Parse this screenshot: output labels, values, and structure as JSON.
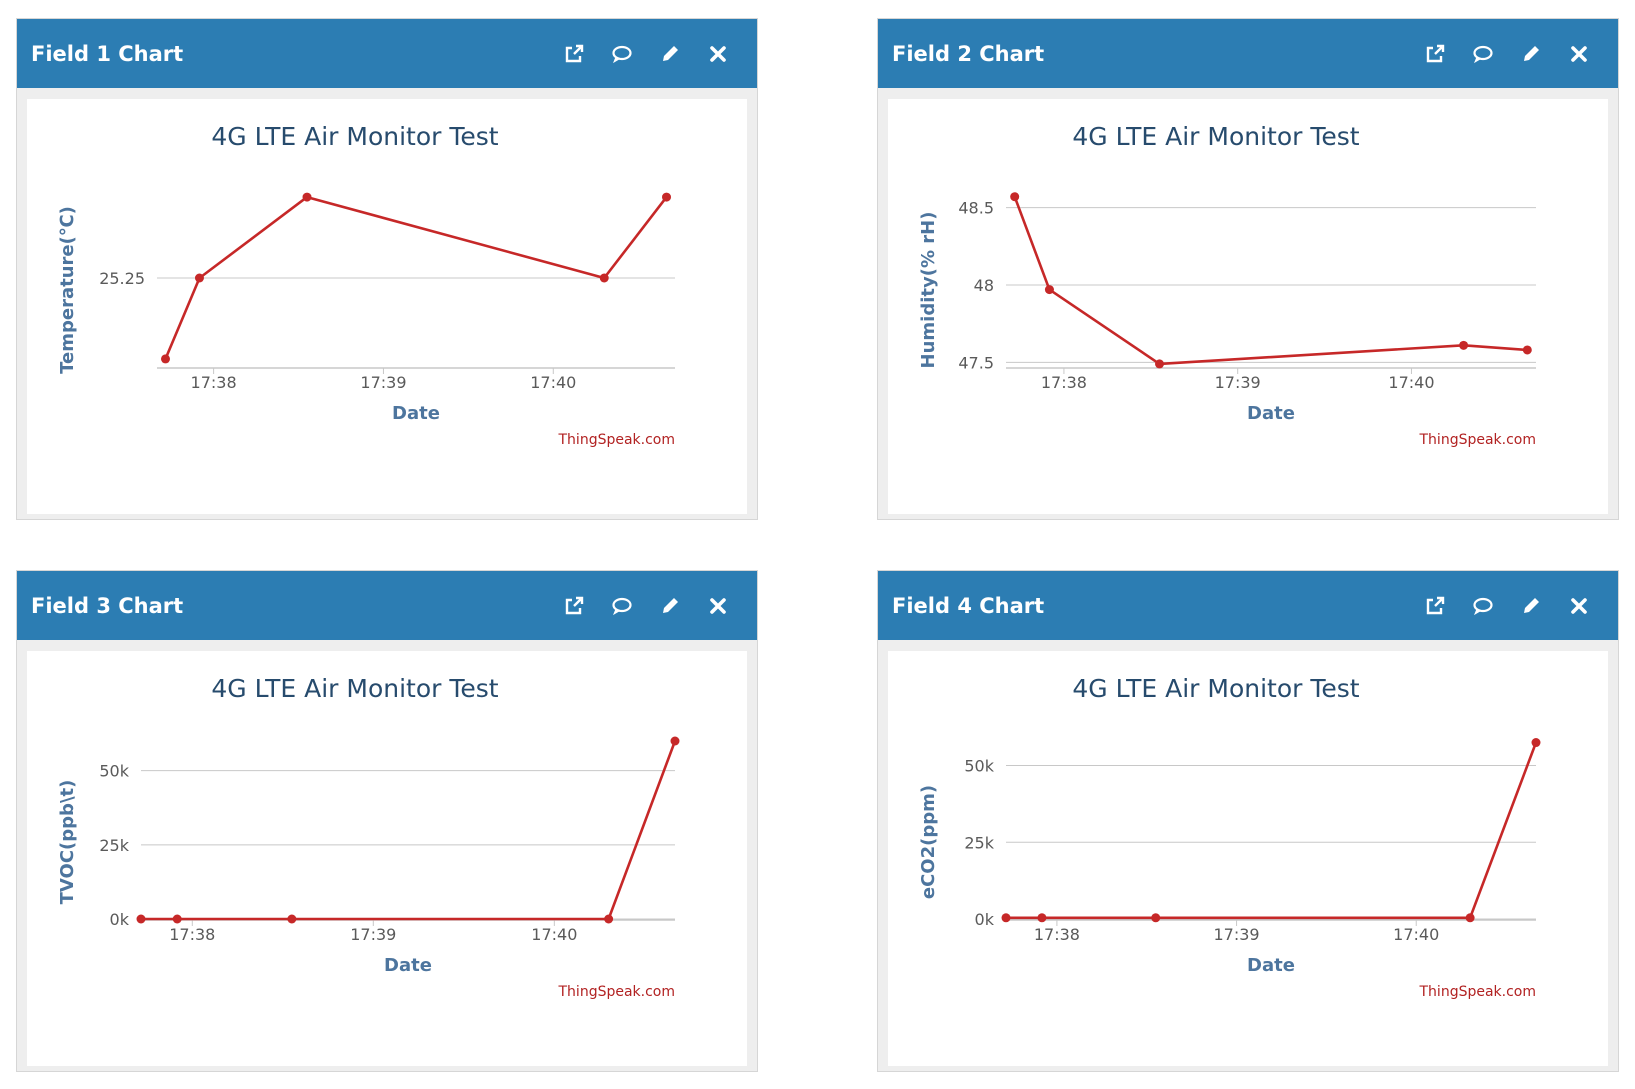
{
  "panels": [
    {
      "header_title": "Field 1 Chart",
      "chart_title": "4G LTE Air Monitor Test",
      "ylabel": "Temperature(℃)",
      "xlabel": "Date",
      "credit": "ThingSpeak.com",
      "y_ticks": [
        "25.25"
      ],
      "x_ticks": [
        "17:38",
        "17:39",
        "17:40"
      ]
    },
    {
      "header_title": "Field 2 Chart",
      "chart_title": "4G LTE Air Monitor Test",
      "ylabel": "Humidity(% rH)",
      "xlabel": "Date",
      "credit": "ThingSpeak.com",
      "y_ticks": [
        "48.5",
        "48",
        "47.5"
      ],
      "x_ticks": [
        "17:38",
        "17:39",
        "17:40"
      ]
    },
    {
      "header_title": "Field 3 Chart",
      "chart_title": "4G LTE Air Monitor Test",
      "ylabel": "TVOC(ppb\\t)",
      "xlabel": "Date",
      "credit": "ThingSpeak.com",
      "y_ticks": [
        "50k",
        "25k",
        "0k"
      ],
      "x_ticks": [
        "17:38",
        "17:39",
        "17:40"
      ]
    },
    {
      "header_title": "Field 4 Chart",
      "chart_title": "4G LTE Air Monitor Test",
      "ylabel": "eCO2(ppm)",
      "xlabel": "Date",
      "credit": "ThingSpeak.com",
      "y_ticks": [
        "50k",
        "25k",
        "0k"
      ],
      "x_ticks": [
        "17:38",
        "17:39",
        "17:40"
      ]
    }
  ],
  "colors": {
    "header": "#2c7db3",
    "line": "#c62828",
    "title": "#274b6d",
    "axis_label": "#4d759e",
    "credit": "#b22222",
    "grid": "#c8c8c8"
  },
  "icons": [
    "external-link-icon",
    "comment-icon",
    "pencil-icon",
    "close-icon"
  ],
  "chart_data": [
    {
      "type": "line",
      "title": "4G LTE Air Monitor Test",
      "xlabel": "Date",
      "ylabel": "Temperature(℃)",
      "x": [
        "17:37:43",
        "17:37:55",
        "17:38:33",
        "17:40:18",
        "17:40:40"
      ],
      "values": [
        25.2,
        25.25,
        25.3,
        25.25,
        25.3
      ],
      "ylim": [
        25.195,
        25.305
      ],
      "xlim": [
        "17:37:40",
        "17:40:43"
      ],
      "y_ticks": [
        25.25
      ],
      "x_ticks": [
        "17:38",
        "17:39",
        "17:40"
      ],
      "grid": true,
      "legend": "none"
    },
    {
      "type": "line",
      "title": "4G LTE Air Monitor Test",
      "xlabel": "Date",
      "ylabel": "Humidity(% rH)",
      "x": [
        "17:37:43",
        "17:37:55",
        "17:38:33",
        "17:40:18",
        "17:40:40"
      ],
      "values": [
        48.57,
        47.97,
        47.49,
        47.61,
        47.58
      ],
      "ylim": [
        47.47,
        48.62
      ],
      "xlim": [
        "17:37:40",
        "17:40:43"
      ],
      "y_ticks": [
        48.5,
        48,
        47.5
      ],
      "x_ticks": [
        "17:38",
        "17:39",
        "17:40"
      ],
      "grid": true,
      "legend": "none"
    },
    {
      "type": "line",
      "title": "4G LTE Air Monitor Test",
      "xlabel": "Date",
      "ylabel": "TVOC(ppb\\t)",
      "x": [
        "17:37:43",
        "17:37:55",
        "17:38:33",
        "17:40:18",
        "17:40:40"
      ],
      "values": [
        0,
        0,
        0,
        0,
        60000
      ],
      "ylim": [
        0,
        60000
      ],
      "xlim": [
        "17:37:43",
        "17:40:40"
      ],
      "y_ticks": [
        50000,
        25000,
        0
      ],
      "x_ticks": [
        "17:38",
        "17:39",
        "17:40"
      ],
      "grid": true,
      "legend": "none"
    },
    {
      "type": "line",
      "title": "4G LTE Air Monitor Test",
      "xlabel": "Date",
      "ylabel": "eCO2(ppm)",
      "x": [
        "17:37:43",
        "17:37:55",
        "17:38:33",
        "17:40:18",
        "17:40:40"
      ],
      "values": [
        400,
        400,
        400,
        400,
        57500
      ],
      "ylim": [
        0,
        58000
      ],
      "xlim": [
        "17:37:43",
        "17:40:40"
      ],
      "y_ticks": [
        50000,
        25000,
        0
      ],
      "x_ticks": [
        "17:38",
        "17:39",
        "17:40"
      ],
      "grid": true,
      "legend": "none"
    }
  ]
}
